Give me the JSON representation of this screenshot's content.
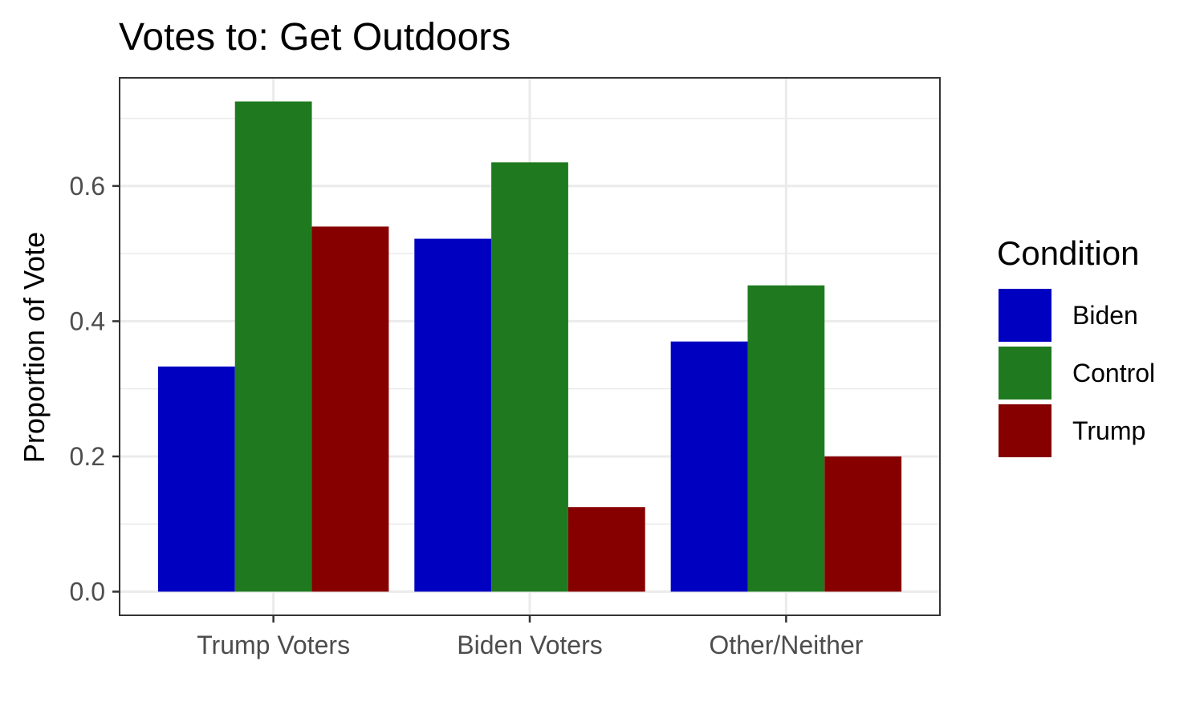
{
  "chart_data": {
    "type": "bar",
    "title": "Votes to: Get Outdoors",
    "xlabel": "",
    "ylabel": "Proportion of Vote",
    "categories": [
      "Trump Voters",
      "Biden Voters",
      "Other/Neither"
    ],
    "series": [
      {
        "name": "Biden",
        "color": "#0000C0",
        "values": [
          0.333,
          0.522,
          0.37
        ]
      },
      {
        "name": "Control",
        "color": "#1F7A1F",
        "values": [
          0.725,
          0.635,
          0.453
        ]
      },
      {
        "name": "Trump",
        "color": "#870000",
        "values": [
          0.54,
          0.125,
          0.2
        ]
      }
    ],
    "ylim": [
      -0.035,
      0.76
    ],
    "yticks": [
      0.0,
      0.2,
      0.4,
      0.6
    ],
    "ytick_labels": [
      "0.0",
      "0.2",
      "0.4",
      "0.6"
    ],
    "grid": true,
    "legend": {
      "title": "Condition",
      "placement": "right"
    }
  }
}
